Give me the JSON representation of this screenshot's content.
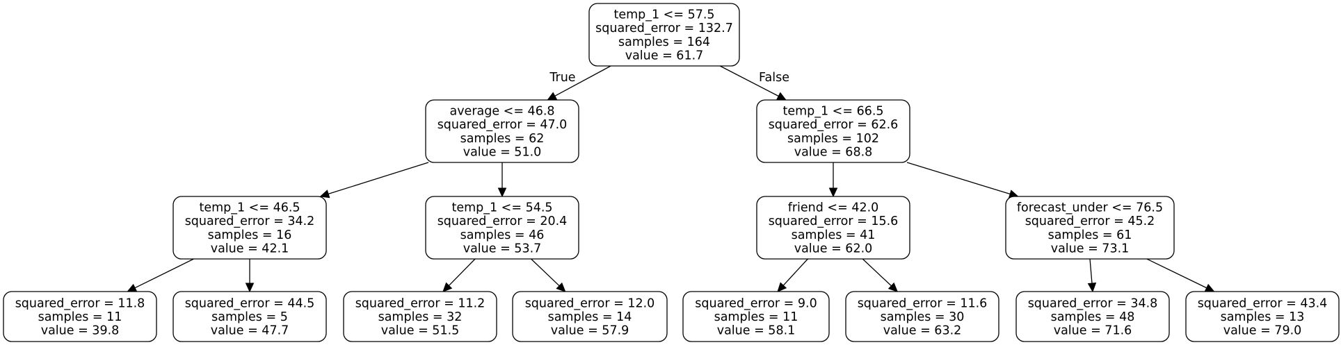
{
  "tree": {
    "nodes": [
      {
        "id": "n0",
        "lines": [
          "temp_1 <= 57.5",
          "squared_error = 132.7",
          "samples = 164",
          "value = 61.7"
        ]
      },
      {
        "id": "n1",
        "lines": [
          "average <= 46.8",
          "squared_error = 47.0",
          "samples = 62",
          "value = 51.0"
        ]
      },
      {
        "id": "n2",
        "lines": [
          "temp_1 <= 66.5",
          "squared_error = 62.6",
          "samples = 102",
          "value = 68.8"
        ]
      },
      {
        "id": "n3",
        "lines": [
          "temp_1 <= 46.5",
          "squared_error = 34.2",
          "samples = 16",
          "value = 42.1"
        ]
      },
      {
        "id": "n4",
        "lines": [
          "temp_1 <= 54.5",
          "squared_error = 20.4",
          "samples = 46",
          "value = 53.7"
        ]
      },
      {
        "id": "n5",
        "lines": [
          "friend <= 42.0",
          "squared_error = 15.6",
          "samples = 41",
          "value = 62.0"
        ]
      },
      {
        "id": "n6",
        "lines": [
          "forecast_under <= 76.5",
          "squared_error = 45.2",
          "samples = 61",
          "value = 73.1"
        ]
      },
      {
        "id": "n7",
        "lines": [
          "squared_error = 11.8",
          "samples = 11",
          "value = 39.8"
        ]
      },
      {
        "id": "n8",
        "lines": [
          "squared_error = 44.5",
          "samples = 5",
          "value = 47.7"
        ]
      },
      {
        "id": "n9",
        "lines": [
          "squared_error = 11.2",
          "samples = 32",
          "value = 51.5"
        ]
      },
      {
        "id": "n10",
        "lines": [
          "squared_error = 12.0",
          "samples = 14",
          "value = 57.9"
        ]
      },
      {
        "id": "n11",
        "lines": [
          "squared_error = 9.0",
          "samples = 11",
          "value = 58.1"
        ]
      },
      {
        "id": "n12",
        "lines": [
          "squared_error = 11.6",
          "samples = 30",
          "value = 63.2"
        ]
      },
      {
        "id": "n13",
        "lines": [
          "squared_error = 34.8",
          "samples = 48",
          "value = 71.6"
        ]
      },
      {
        "id": "n14",
        "lines": [
          "squared_error = 43.4",
          "samples = 13",
          "value = 79.0"
        ]
      }
    ],
    "edges": [
      {
        "from": "n0",
        "to": "n1",
        "label": "True"
      },
      {
        "from": "n0",
        "to": "n2",
        "label": "False"
      },
      {
        "from": "n1",
        "to": "n3"
      },
      {
        "from": "n1",
        "to": "n4"
      },
      {
        "from": "n2",
        "to": "n5"
      },
      {
        "from": "n2",
        "to": "n6"
      },
      {
        "from": "n3",
        "to": "n7"
      },
      {
        "from": "n3",
        "to": "n8"
      },
      {
        "from": "n4",
        "to": "n9"
      },
      {
        "from": "n4",
        "to": "n10"
      },
      {
        "from": "n5",
        "to": "n11"
      },
      {
        "from": "n5",
        "to": "n12"
      },
      {
        "from": "n6",
        "to": "n13"
      },
      {
        "from": "n6",
        "to": "n14"
      }
    ]
  }
}
